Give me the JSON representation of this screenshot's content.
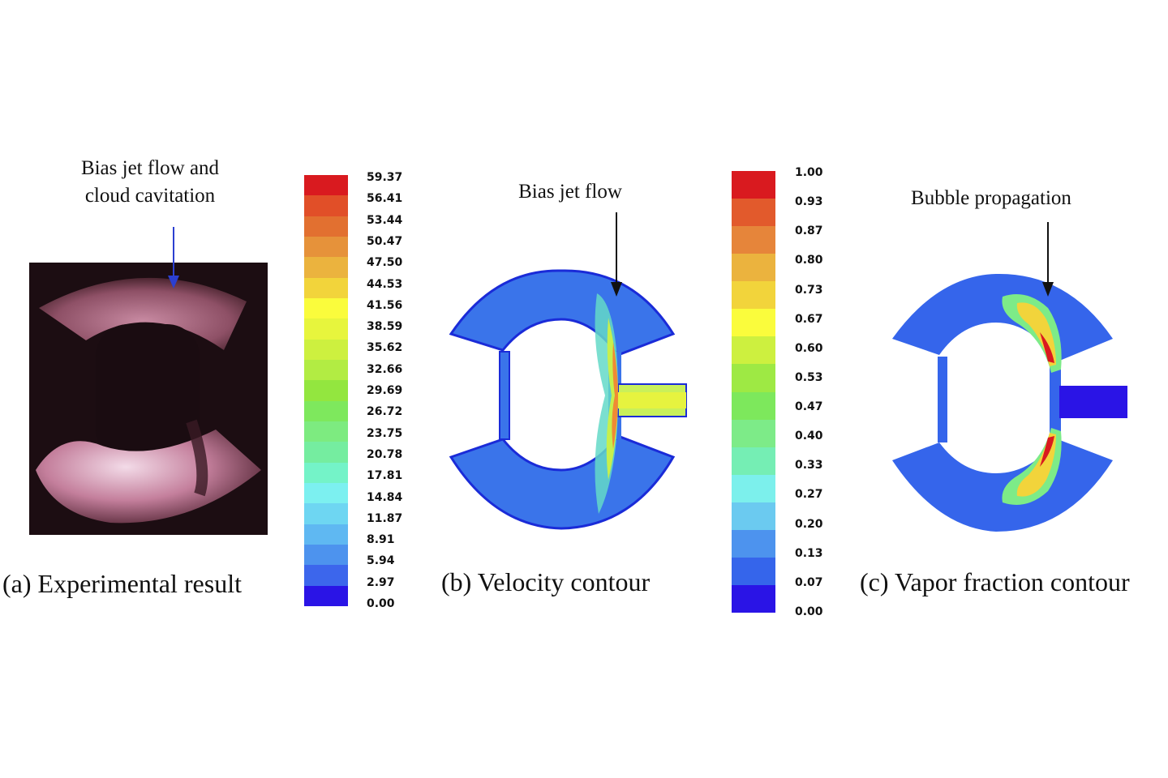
{
  "panel_a": {
    "caption": "(a) Experimental result",
    "annotation_line1": "Bias jet flow and",
    "annotation_line2": "cloud cavitation"
  },
  "panel_b": {
    "caption": "(b) Velocity contour",
    "annotation": "Bias jet flow"
  },
  "panel_c": {
    "caption": "(c) Vapor fraction contour",
    "annotation": "Bubble propagation"
  },
  "velocity_scale": {
    "ticks": [
      "59.37",
      "56.41",
      "53.44",
      "50.47",
      "47.50",
      "44.53",
      "41.56",
      "38.59",
      "35.62",
      "32.66",
      "29.69",
      "26.72",
      "23.75",
      "20.78",
      "17.81",
      "14.84",
      "11.87",
      "8.91",
      "5.94",
      "2.97",
      "0.00"
    ],
    "colors": [
      "#d91a1f",
      "#e14f28",
      "#e27030",
      "#e6923a",
      "#ebb33e",
      "#f2d43b",
      "#fafc3c",
      "#e7f53d",
      "#cdf03f",
      "#b2ec43",
      "#93e63f",
      "#7ee85d",
      "#7deb80",
      "#75eda0",
      "#74f3c8",
      "#7cf0f0",
      "#6ed6f2",
      "#5fb8f2",
      "#4d93ee",
      "#3c66ec",
      "#2a14e6"
    ]
  },
  "vapor_scale": {
    "ticks": [
      "1.00",
      "0.93",
      "0.87",
      "0.80",
      "0.73",
      "0.67",
      "0.60",
      "0.53",
      "0.47",
      "0.40",
      "0.33",
      "0.27",
      "0.20",
      "0.13",
      "0.07",
      "0.00"
    ],
    "colors": [
      "#d91a1f",
      "#e25a2c",
      "#e6853a",
      "#ebb33e",
      "#f2d43b",
      "#fafc3c",
      "#cdf03f",
      "#9ee944",
      "#7de85c",
      "#7deb88",
      "#75eeb4",
      "#7cf0ec",
      "#6bcaf0",
      "#4d93ee",
      "#3565eb",
      "#2a14e6"
    ]
  }
}
